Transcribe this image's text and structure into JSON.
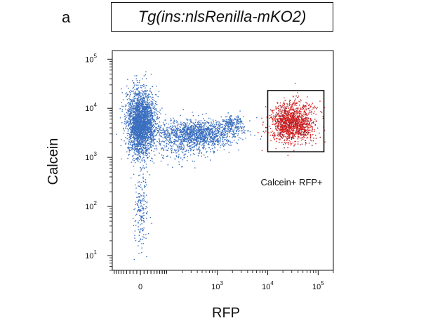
{
  "panel_letter": "a",
  "title": "Tg(ins:nlsRenilla-mKO2)",
  "chart_data": {
    "type": "scatter",
    "title": "Tg(ins:nlsRenilla-mKO2)",
    "xlabel": "RFP",
    "ylabel": "Calcein",
    "x_scale": "biexponential",
    "y_scale": "log",
    "xlim": [
      -100,
      200000
    ],
    "ylim": [
      5,
      150000
    ],
    "x_ticks": [
      {
        "value": 0,
        "exp": "",
        "base": "0"
      },
      {
        "value": 1000,
        "base": "10",
        "exp": "3"
      },
      {
        "value": 10000,
        "base": "10",
        "exp": "4"
      },
      {
        "value": 100000,
        "base": "10",
        "exp": "5"
      }
    ],
    "y_ticks": [
      {
        "value": 10,
        "base": "10",
        "exp": "1"
      },
      {
        "value": 100,
        "base": "10",
        "exp": "2"
      },
      {
        "value": 1000,
        "base": "10",
        "exp": "3"
      },
      {
        "value": 10000,
        "base": "10",
        "exp": "4"
      },
      {
        "value": 100000,
        "base": "10",
        "exp": "5"
      }
    ],
    "series": [
      {
        "color": "#3a6fbf",
        "regions": [
          {
            "x": 0,
            "y": 5000,
            "count": 2600
          },
          {
            "x": 400,
            "y": 3200,
            "count": 1200
          },
          {
            "x": 0,
            "y": 100,
            "count": 180
          },
          {
            "x": 2000,
            "y": 5000,
            "count": 180
          },
          {
            "x": 200,
            "y": 2000,
            "count": 350
          }
        ]
      },
      {
        "name": "Calcein+ RFP+",
        "color": "#e8231f",
        "regions": [
          {
            "x": 30000,
            "y": 5000,
            "count": 1400
          }
        ]
      }
    ],
    "gate": {
      "label": "Calcein+ RFP+",
      "x_range": [
        10000,
        130000
      ],
      "y_range": [
        1300,
        23000
      ]
    },
    "grid": false,
    "legend": "none"
  }
}
